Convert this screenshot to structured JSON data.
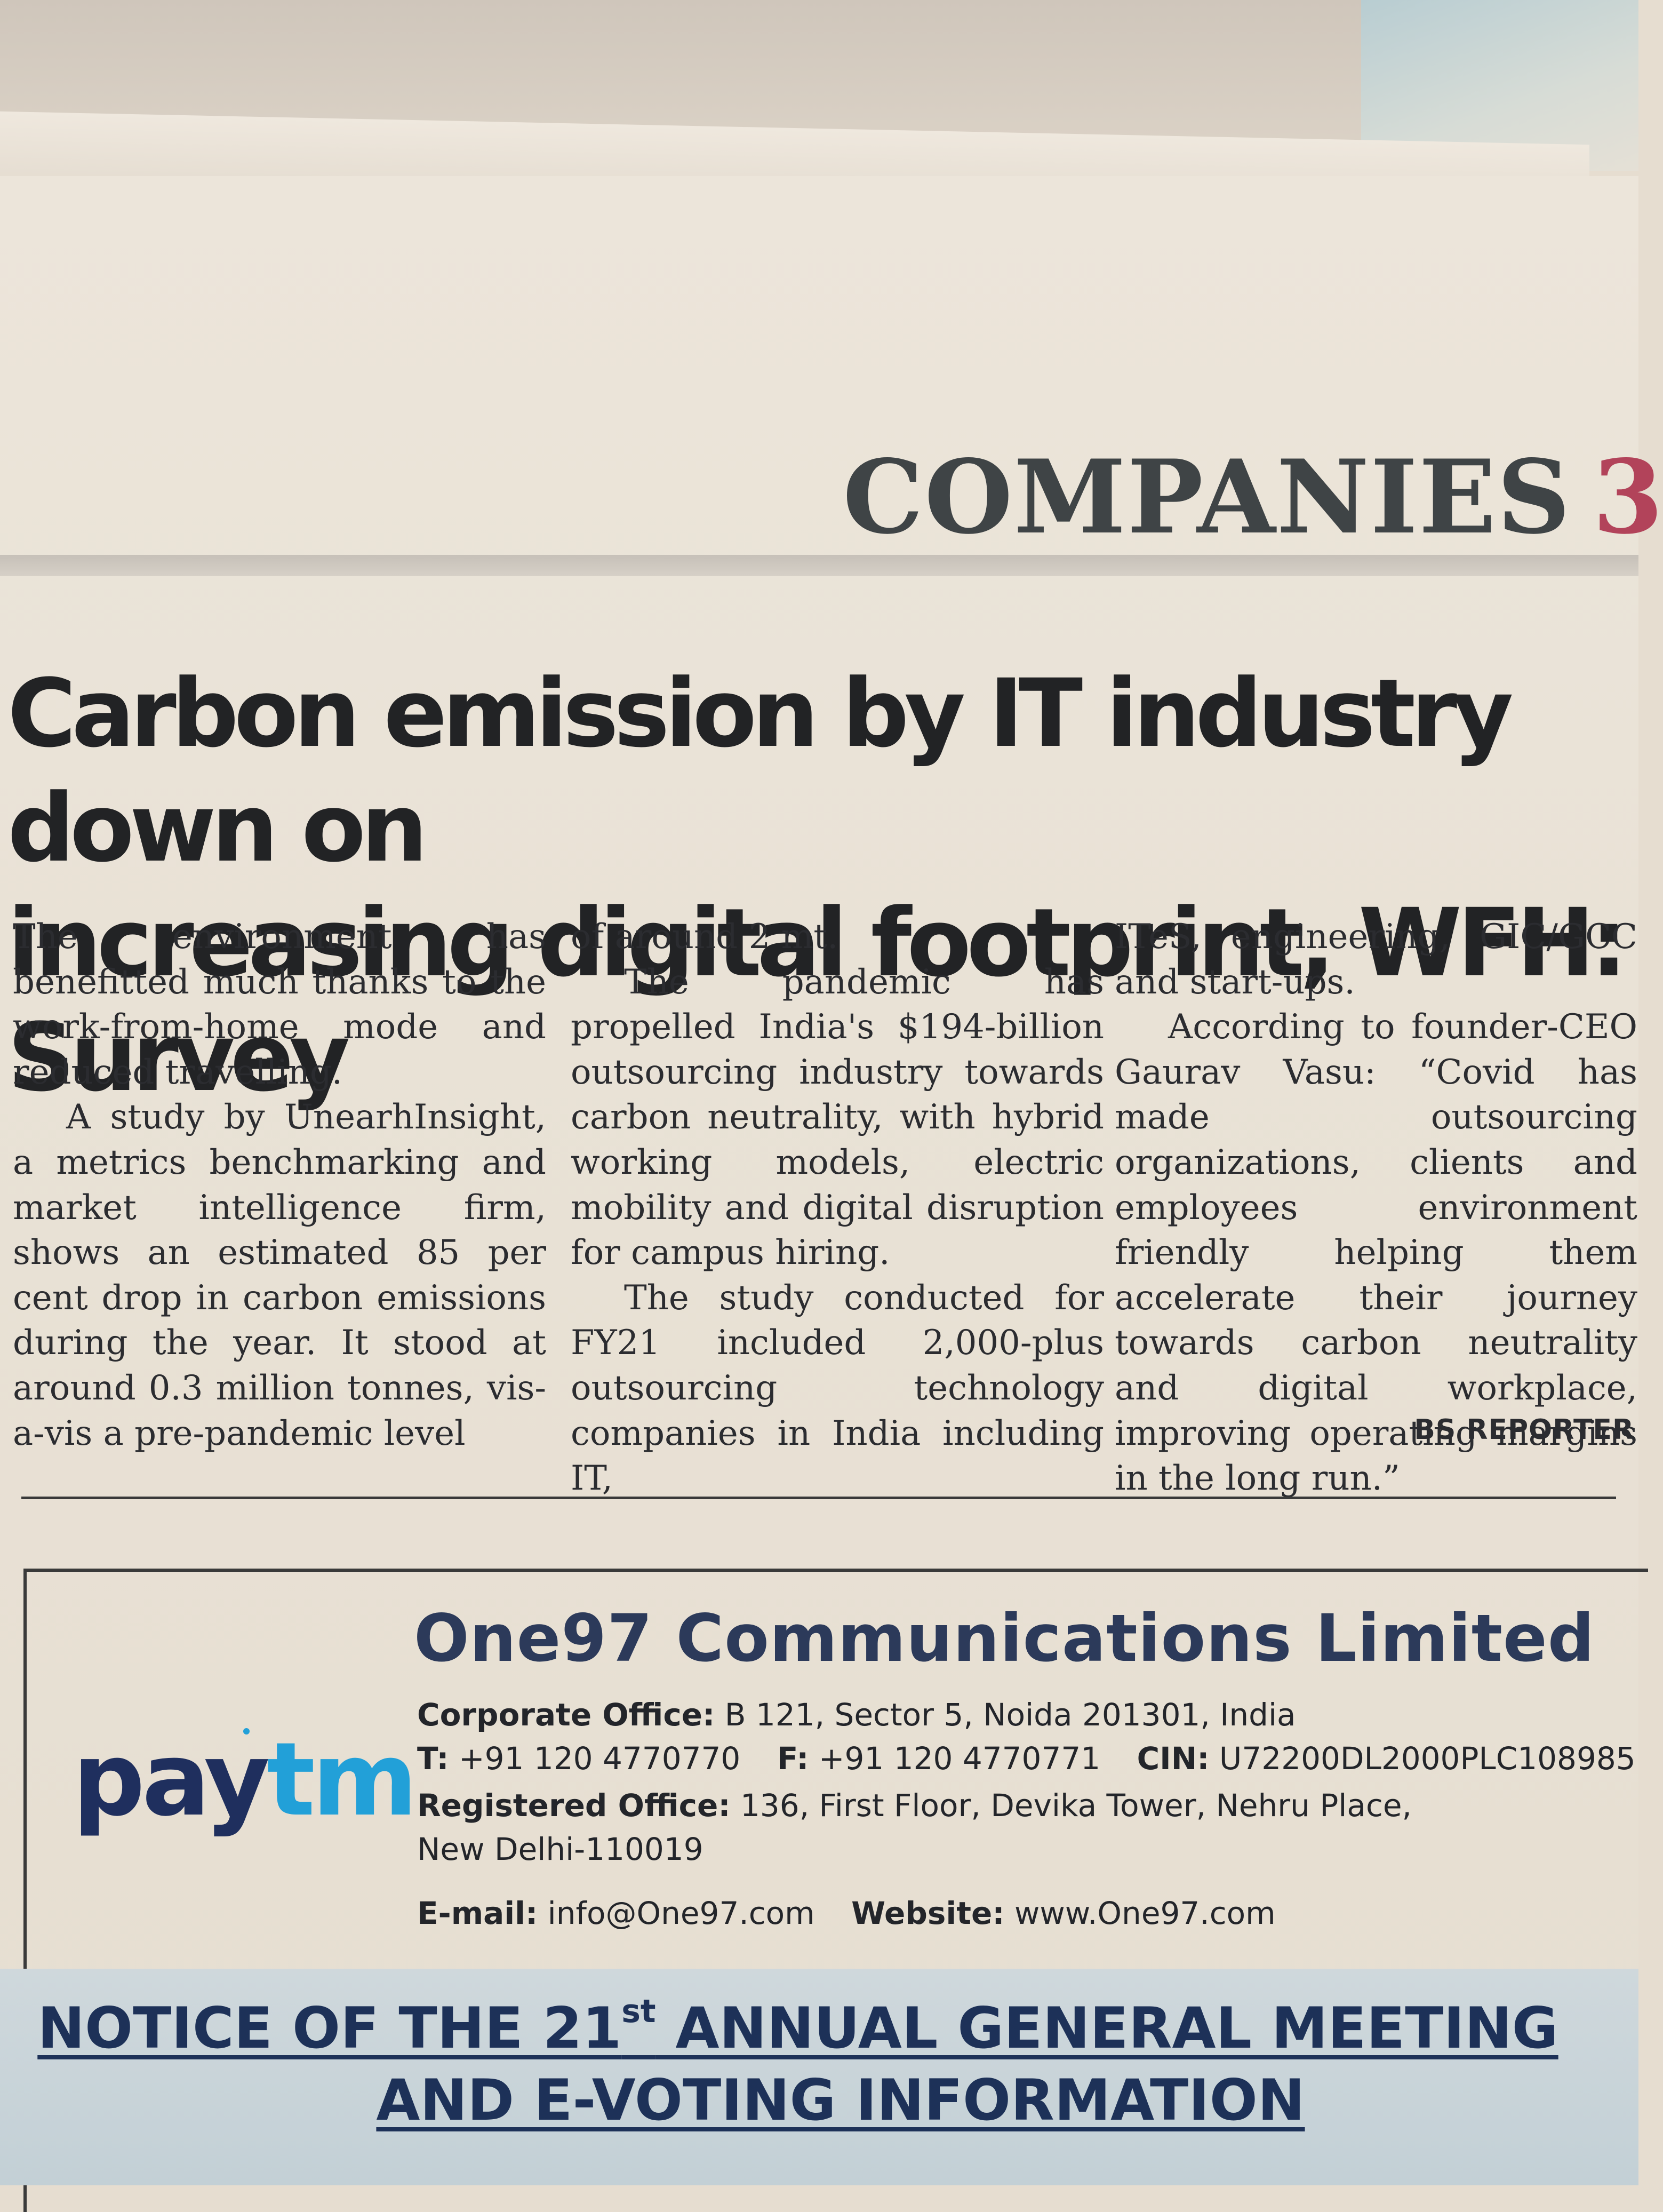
{
  "header": {
    "section": "COMPANIES",
    "page_number": "3"
  },
  "article": {
    "headline_line1": "Carbon emission by IT industry down on",
    "headline_line2": "increasing digital footprint, WFH: Survey",
    "columns": [
      [
        {
          "text": "The environment has benefitted much thanks to the work-from-home mode and reduced travelling.",
          "indent": false
        },
        {
          "text": "A study by UnearhInsight, a metrics benchmarking and market intelligence firm, shows an estimated 85 per cent drop in carbon emissions during the year. It stood at around 0.3 million tonnes, vis-a-vis a pre-pandemic level",
          "indent": true
        }
      ],
      [
        {
          "text": "of around 2 mt.",
          "indent": false
        },
        {
          "text": "The pandemic has propelled India's $194-billion outsourcing industry towards carbon neutrality, with hybrid working models, electric mobility and digital disruption for campus hiring.",
          "indent": true
        },
        {
          "text": "The study conducted for FY21 included 2,000-plus outsourcing technology companies in India including IT,",
          "indent": true
        }
      ],
      [
        {
          "text": "ITeS, engineering, GIC/GCC and start-ups.",
          "indent": false
        },
        {
          "text": "According to founder-CEO Gaurav Vasu: “Covid has made outsourcing organizations, clients and employees environment friendly helping them accelerate their journey towards carbon neutrality and digital workplace, improving operating margins in the long run.”",
          "indent": true
        }
      ]
    ],
    "byline": "BS REPORTER"
  },
  "advertisement": {
    "logo_pay": "pay",
    "logo_tm": "tm",
    "company_name": "One97 Communications Limited",
    "corporate_office_label": "Corporate Office:",
    "corporate_office_value": "B 121, Sector 5, Noida 201301, India",
    "phone_label": "T:",
    "phone_value": "+91 120 4770770",
    "fax_label": "F:",
    "fax_value": "+91 120 4770771",
    "cin_label": "CIN:",
    "cin_value": "U72200DL2000PLC108985",
    "registered_office_label": "Registered Office:",
    "registered_office_value": "136, First Floor, Devika Tower, Nehru Place,",
    "registered_office_city": "New Delhi-110019",
    "email_label": "E-mail:",
    "email_value": "info@One97.com",
    "website_label": "Website:",
    "website_value": "www.One97.com",
    "notice_line1_pre": "NOTICE OF THE 21",
    "notice_line1_sup": "st",
    "notice_line1_post": " ANNUAL GENERAL MEETING",
    "notice_line2": "AND E-VOTING INFORMATION"
  },
  "colors": {
    "page_number": "#b2435a",
    "logo_dark": "#1f2f5e",
    "logo_light": "#22a0d8",
    "company_name": "#2c3a5a",
    "notice": "#1d3158"
  }
}
